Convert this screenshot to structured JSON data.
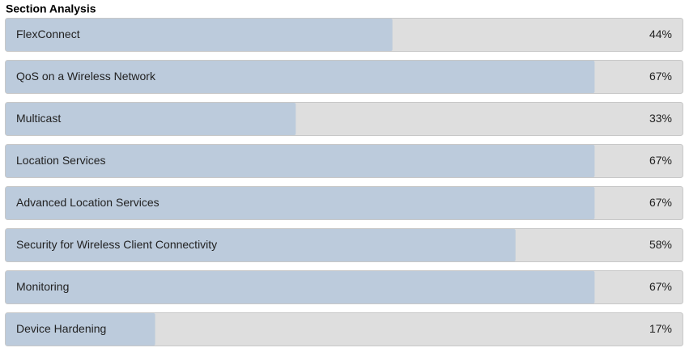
{
  "chart_data": {
    "type": "bar",
    "orientation": "horizontal",
    "title": "Section Analysis",
    "categories": [
      "FlexConnect",
      "QoS on a Wireless Network",
      "Multicast",
      "Location Services",
      "Advanced Location Services",
      "Security for Wireless Client Connectivity",
      "Monitoring",
      "Device Hardening"
    ],
    "values": [
      44,
      67,
      33,
      67,
      67,
      58,
      67,
      17
    ],
    "value_labels": [
      "44%",
      "67%",
      "33%",
      "67%",
      "67%",
      "58%",
      "67%",
      "17%"
    ],
    "xlim": [
      0,
      77
    ],
    "color": "#bccbdc",
    "track_color": "#dedede"
  }
}
